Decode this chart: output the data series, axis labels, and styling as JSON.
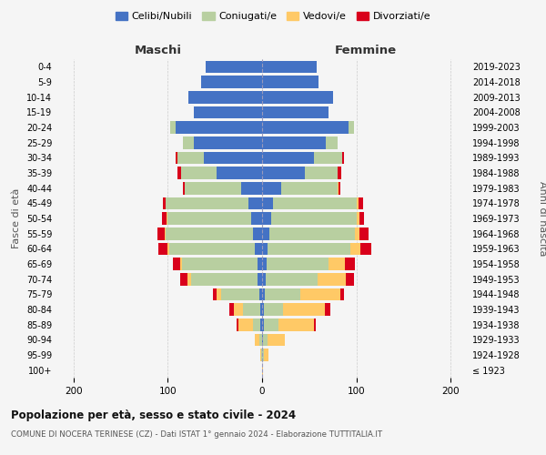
{
  "age_groups": [
    "100+",
    "95-99",
    "90-94",
    "85-89",
    "80-84",
    "75-79",
    "70-74",
    "65-69",
    "60-64",
    "55-59",
    "50-54",
    "45-49",
    "40-44",
    "35-39",
    "30-34",
    "25-29",
    "20-24",
    "15-19",
    "10-14",
    "5-9",
    "0-4"
  ],
  "birth_years": [
    "≤ 1923",
    "1924-1928",
    "1929-1933",
    "1934-1938",
    "1939-1943",
    "1944-1948",
    "1949-1953",
    "1954-1958",
    "1959-1963",
    "1964-1968",
    "1969-1973",
    "1974-1978",
    "1979-1983",
    "1984-1988",
    "1989-1993",
    "1994-1998",
    "1999-2003",
    "2004-2008",
    "2009-2013",
    "2014-2018",
    "2019-2023"
  ],
  "males": {
    "celibi": [
      0,
      0,
      0,
      2,
      2,
      3,
      5,
      5,
      8,
      10,
      12,
      14,
      22,
      48,
      62,
      72,
      92,
      72,
      78,
      65,
      60
    ],
    "coniugati": [
      0,
      1,
      3,
      8,
      18,
      40,
      70,
      80,
      90,
      92,
      88,
      88,
      60,
      38,
      28,
      12,
      5,
      0,
      0,
      0,
      0
    ],
    "vedovi": [
      0,
      1,
      5,
      15,
      10,
      5,
      4,
      2,
      2,
      1,
      1,
      0,
      0,
      0,
      0,
      0,
      0,
      0,
      0,
      0,
      0
    ],
    "divorziati": [
      0,
      0,
      0,
      2,
      5,
      4,
      8,
      8,
      10,
      8,
      5,
      3,
      2,
      4,
      2,
      0,
      0,
      0,
      0,
      0,
      0
    ]
  },
  "females": {
    "nubili": [
      0,
      0,
      1,
      2,
      2,
      3,
      4,
      5,
      6,
      8,
      10,
      12,
      20,
      45,
      55,
      68,
      92,
      70,
      75,
      60,
      58
    ],
    "coniugate": [
      0,
      2,
      5,
      15,
      20,
      38,
      55,
      65,
      88,
      90,
      90,
      88,
      60,
      35,
      30,
      12,
      5,
      0,
      0,
      0,
      0
    ],
    "vedove": [
      1,
      5,
      18,
      38,
      45,
      42,
      30,
      18,
      10,
      5,
      3,
      2,
      1,
      0,
      0,
      0,
      0,
      0,
      0,
      0,
      0
    ],
    "divorziate": [
      0,
      0,
      0,
      2,
      5,
      4,
      8,
      10,
      12,
      10,
      5,
      5,
      2,
      4,
      2,
      0,
      0,
      0,
      0,
      0,
      0
    ]
  },
  "colors": {
    "celibi": "#4472c4",
    "coniugati": "#b8cfa0",
    "vedovi": "#ffc966",
    "divorziati": "#d9001b"
  },
  "xlim": 220,
  "title": "Popolazione per età, sesso e stato civile - 2024",
  "subtitle": "COMUNE DI NOCERA TERINESE (CZ) - Dati ISTAT 1° gennaio 2024 - Elaborazione TUTTITALIA.IT",
  "ylabel_left": "Fasce di età",
  "ylabel_right": "Anni di nascita",
  "xlabel_maschi": "Maschi",
  "xlabel_femmine": "Femmine",
  "legend_labels": [
    "Celibi/Nubili",
    "Coniugati/e",
    "Vedovi/e",
    "Divorziati/e"
  ],
  "bg_color": "#f5f5f5"
}
